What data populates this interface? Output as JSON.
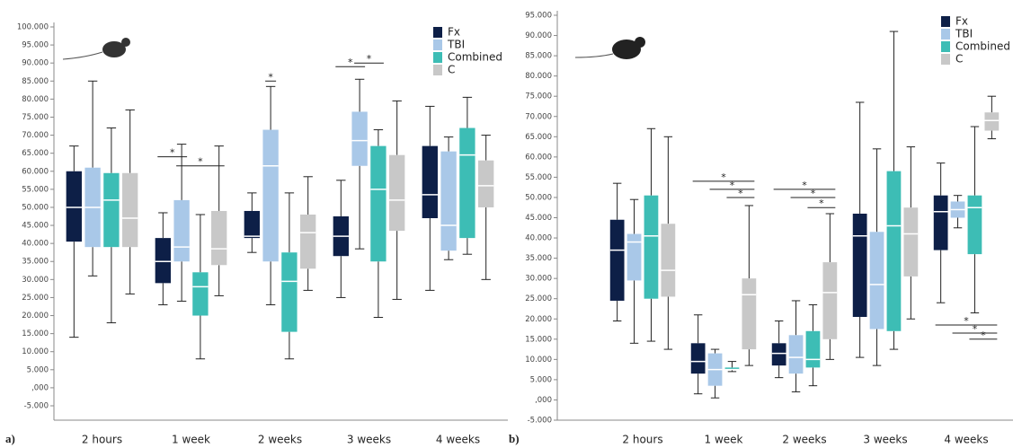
{
  "chart_data": [
    {
      "type": "box",
      "panel_label": "a)",
      "categories": [
        "2 hours",
        "1 week",
        "2 weeks",
        "3 weeks",
        "4 weeks"
      ],
      "ylim": [
        -5,
        100
      ],
      "yticks": [
        {
          "value": -5,
          "label": "-5.000"
        },
        {
          "value": 0,
          "label": ",000"
        },
        {
          "value": 5,
          "label": "5.000"
        },
        {
          "value": 10,
          "label": "10.000"
        },
        {
          "value": 15,
          "label": "15.000"
        },
        {
          "value": 20,
          "label": "20.000"
        },
        {
          "value": 25,
          "label": "25.000"
        },
        {
          "value": 30,
          "label": "30.000"
        },
        {
          "value": 35,
          "label": "35.000"
        },
        {
          "value": 40,
          "label": "40.000"
        },
        {
          "value": 45,
          "label": "45.000"
        },
        {
          "value": 50,
          "label": "50.000"
        },
        {
          "value": 55,
          "label": "55.000"
        },
        {
          "value": 60,
          "label": "60.000"
        },
        {
          "value": 65,
          "label": "65.000"
        },
        {
          "value": 70,
          "label": "70.000"
        },
        {
          "value": 75,
          "label": "75.000"
        },
        {
          "value": 80,
          "label": "80.000"
        },
        {
          "value": 85,
          "label": "85.000"
        },
        {
          "value": 90,
          "label": "90.000"
        },
        {
          "value": 95,
          "label": "95.000"
        },
        {
          "value": 100,
          "label": "100.000"
        }
      ],
      "series": [
        {
          "name": "Fx",
          "color": "#0d1f47",
          "min": [
            14,
            23,
            37.5,
            25,
            27
          ],
          "q1": [
            40.5,
            29,
            41.5,
            36.5,
            47
          ],
          "median": [
            50,
            35,
            42,
            42,
            53.5
          ],
          "q3": [
            60,
            41.5,
            49,
            47.5,
            67
          ],
          "max": [
            67,
            48.5,
            54,
            57.5,
            78
          ]
        },
        {
          "name": "TBI",
          "color": "#a9c8e8",
          "min": [
            31,
            24,
            23,
            38.5,
            35.5
          ],
          "q1": [
            39,
            35,
            35,
            61.5,
            38
          ],
          "median": [
            50,
            39,
            61.5,
            68.5,
            45
          ],
          "q3": [
            61,
            52,
            71.5,
            76.5,
            65.5
          ],
          "max": [
            85,
            67.5,
            83.5,
            85.5,
            69.5
          ]
        },
        {
          "name": "Combined",
          "color": "#3dbdb5",
          "min": [
            18,
            8,
            8,
            19.5,
            37
          ],
          "q1": [
            39,
            20,
            15.5,
            35,
            41.5
          ],
          "median": [
            52,
            28,
            29.5,
            55,
            64.5
          ],
          "q3": [
            59.5,
            32,
            37.5,
            67,
            72
          ],
          "max": [
            72,
            48,
            54,
            71.5,
            80.5
          ]
        },
        {
          "name": "C",
          "color": "#c8c8c8",
          "min": [
            26,
            25.5,
            27,
            24.5,
            30
          ],
          "q1": [
            39,
            34,
            33,
            43.5,
            50
          ],
          "median": [
            47,
            38.5,
            43,
            52,
            56
          ],
          "q3": [
            59.5,
            49,
            48,
            64.5,
            63
          ],
          "max": [
            77,
            67,
            58.5,
            79.5,
            70
          ]
        }
      ],
      "annotations": [
        {
          "text": "*",
          "y": 64
        },
        {
          "text": "*",
          "y": 61.5
        },
        {
          "text": "*",
          "y": 85
        },
        {
          "text": "*",
          "y": 89
        },
        {
          "text": "*",
          "y": 90
        }
      ]
    },
    {
      "type": "box",
      "panel_label": "b)",
      "categories": [
        "2 hours",
        "1 week",
        "2 weeks",
        "3 weeks",
        "4 weeks"
      ],
      "ylim": [
        -5,
        95
      ],
      "yticks": [
        {
          "value": -5,
          "label": "-5.000"
        },
        {
          "value": 0,
          "label": ",000"
        },
        {
          "value": 5,
          "label": "5.000"
        },
        {
          "value": 10,
          "label": "10.000"
        },
        {
          "value": 15,
          "label": "15.000"
        },
        {
          "value": 20,
          "label": "20.000"
        },
        {
          "value": 25,
          "label": "25.000"
        },
        {
          "value": 30,
          "label": "30.000"
        },
        {
          "value": 35,
          "label": "35.000"
        },
        {
          "value": 40,
          "label": "40.000"
        },
        {
          "value": 45,
          "label": "45.000"
        },
        {
          "value": 50,
          "label": "50.000"
        },
        {
          "value": 55,
          "label": "55.000"
        },
        {
          "value": 60,
          "label": "60.000"
        },
        {
          "value": 65,
          "label": "65.000"
        },
        {
          "value": 70,
          "label": "70.000"
        },
        {
          "value": 75,
          "label": "75.000"
        },
        {
          "value": 80,
          "label": "80.000"
        },
        {
          "value": 85,
          "label": "85.000"
        },
        {
          "value": 90,
          "label": "90.000"
        },
        {
          "value": 95,
          "label": "95.000"
        }
      ],
      "series": [
        {
          "name": "Fx",
          "color": "#0d1f47",
          "min": [
            19.5,
            1.5,
            5.5,
            10.5,
            24
          ],
          "q1": [
            24.5,
            6.5,
            8.5,
            20.5,
            37
          ],
          "median": [
            37,
            9.5,
            11.5,
            40.5,
            46.5
          ],
          "q3": [
            44.5,
            14,
            14,
            46,
            50.5
          ],
          "max": [
            53.5,
            21,
            19.5,
            73.5,
            58.5
          ]
        },
        {
          "name": "TBI",
          "color": "#a9c8e8",
          "min": [
            14,
            0.5,
            2,
            8.5,
            42.5
          ],
          "q1": [
            29.5,
            3.5,
            6.5,
            17.5,
            45
          ],
          "median": [
            39,
            7.5,
            10.5,
            28.5,
            47
          ],
          "q3": [
            41,
            11.5,
            16,
            41.5,
            49
          ],
          "max": [
            49.5,
            12.5,
            24.5,
            62,
            50.5
          ]
        },
        {
          "name": "Combined",
          "color": "#3dbdb5",
          "min": [
            14.5,
            7,
            3.5,
            12.5,
            21.5
          ],
          "q1": [
            25,
            7.5,
            8,
            17,
            36
          ],
          "median": [
            40.5,
            7.5,
            10,
            43,
            47.5
          ],
          "q3": [
            50.5,
            8,
            17,
            56.5,
            50.5
          ],
          "max": [
            67,
            9.5,
            23.5,
            91,
            67.5
          ]
        },
        {
          "name": "C",
          "color": "#c8c8c8",
          "min": [
            12.5,
            8.5,
            10,
            20,
            64.5
          ],
          "q1": [
            25.5,
            12.5,
            15,
            30.5,
            66.5
          ],
          "median": [
            32,
            26,
            26.5,
            41,
            69
          ],
          "q3": [
            43.5,
            30,
            34,
            47.5,
            71
          ],
          "max": [
            65,
            48,
            46,
            62.5,
            75
          ]
        }
      ],
      "annotations": [
        {
          "text": "*",
          "y": 54
        },
        {
          "text": "*",
          "y": 52
        },
        {
          "text": "*",
          "y": 50
        },
        {
          "text": "*",
          "y": 52
        },
        {
          "text": "*",
          "y": 50
        },
        {
          "text": "*",
          "y": 47.5
        },
        {
          "text": "*",
          "y": 18.5
        },
        {
          "text": "*",
          "y": 16.5
        },
        {
          "text": "*",
          "y": 15
        }
      ]
    }
  ]
}
